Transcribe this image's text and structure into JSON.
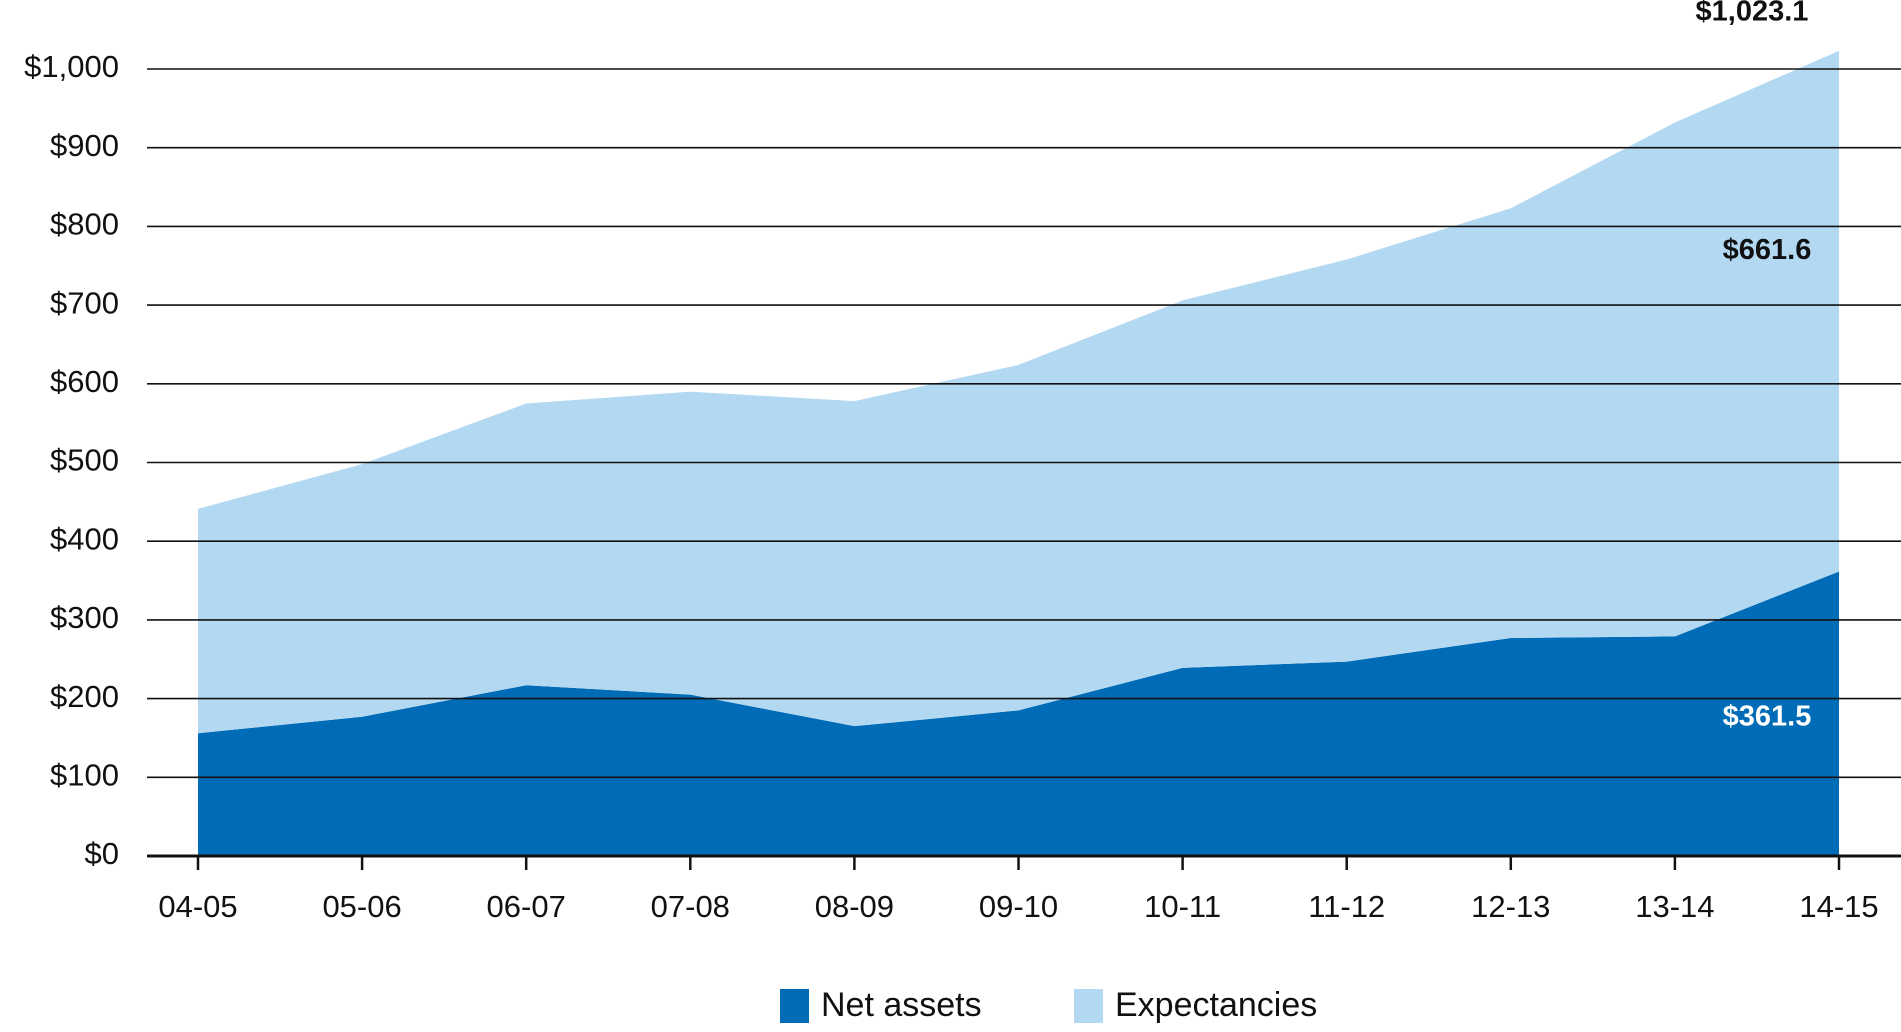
{
  "chart_data": {
    "type": "area",
    "stacked": true,
    "categories": [
      "04-05",
      "05-06",
      "06-07",
      "07-08",
      "08-09",
      "09-10",
      "10-11",
      "11-12",
      "12-13",
      "13-14",
      "14-15"
    ],
    "series": [
      {
        "name": "Net assets",
        "color": "#006bb6",
        "values": [
          156,
          177,
          217,
          205,
          165,
          185,
          239,
          247,
          277,
          279,
          361.5
        ],
        "value_labels": [
          null,
          null,
          null,
          null,
          null,
          null,
          null,
          null,
          null,
          null,
          "$361.5"
        ],
        "label_color": "#ffffff"
      },
      {
        "name": "Expectancies",
        "color": "#b3d9f2",
        "values": [
          285,
          321,
          358,
          385,
          413,
          439,
          467,
          511,
          546,
          653,
          661.6
        ],
        "value_labels": [
          null,
          null,
          null,
          null,
          null,
          null,
          null,
          null,
          null,
          null,
          "$661.6"
        ],
        "label_color": "#111111"
      }
    ],
    "annotations": [
      {
        "text": "$1,023.1",
        "value": 1023.1
      }
    ],
    "ylim": [
      0,
      1050
    ],
    "yticks": [
      {
        "value": 0,
        "label": "$0"
      },
      {
        "value": 100,
        "label": "$100"
      },
      {
        "value": 200,
        "label": "$200"
      },
      {
        "value": 300,
        "label": "$300"
      },
      {
        "value": 400,
        "label": "$400"
      },
      {
        "value": 500,
        "label": "$500"
      },
      {
        "value": 600,
        "label": "$600"
      },
      {
        "value": 700,
        "label": "$700"
      },
      {
        "value": 800,
        "label": "$800"
      },
      {
        "value": 900,
        "label": "$900"
      },
      {
        "value": 1000,
        "label": "$1,000"
      }
    ],
    "grid": true,
    "legend": "bottom"
  }
}
